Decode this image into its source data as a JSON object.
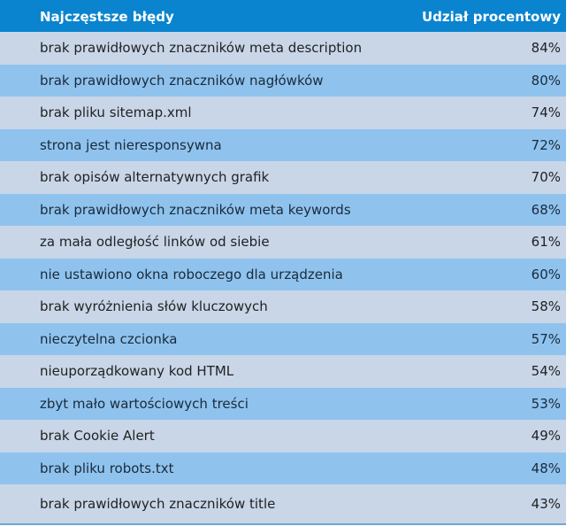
{
  "table": {
    "headers": {
      "label": "Najczęstsze błędy",
      "value": "Udział procentowy"
    },
    "rows": [
      {
        "label": "brak prawidłowych znaczników meta description",
        "value": "84%"
      },
      {
        "label": "brak prawidłowych znaczników nagłówków",
        "value": "80%"
      },
      {
        "label": "brak pliku sitemap.xml",
        "value": "74%"
      },
      {
        "label": "strona jest nieresponsywna",
        "value": "72%"
      },
      {
        "label": "brak opisów alternatywnych grafik",
        "value": "70%"
      },
      {
        "label": "brak prawidłowych znaczników meta keywords",
        "value": "68%"
      },
      {
        "label": "za mała odległość linków od siebie",
        "value": "61%"
      },
      {
        "label": "nie ustawiono okna roboczego dla urządzenia",
        "value": "60%"
      },
      {
        "label": "brak wyróżnienia słów kluczowych",
        "value": "58%"
      },
      {
        "label": "nieczytelna czcionka",
        "value": "57%"
      },
      {
        "label": "nieuporządkowany kod HTML",
        "value": "54%"
      },
      {
        "label": "zbyt mało wartościowych treści",
        "value": "53%"
      },
      {
        "label": "brak Cookie Alert",
        "value": "49%"
      },
      {
        "label": "brak pliku robots.txt",
        "value": "48%"
      },
      {
        "label": "brak prawidłowych znaczników title",
        "value": "43%"
      }
    ]
  },
  "colors": {
    "header_bg": "#0a84cf",
    "row_light": "#c8d6e8",
    "row_blue": "#8fc3ee"
  }
}
